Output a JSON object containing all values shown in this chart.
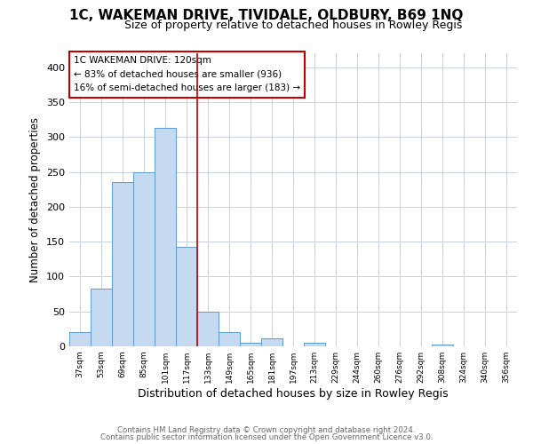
{
  "title": "1C, WAKEMAN DRIVE, TIVIDALE, OLDBURY, B69 1NQ",
  "subtitle": "Size of property relative to detached houses in Rowley Regis",
  "xlabel": "Distribution of detached houses by size in Rowley Regis",
  "ylabel": "Number of detached properties",
  "categories": [
    "37sqm",
    "53sqm",
    "69sqm",
    "85sqm",
    "101sqm",
    "117sqm",
    "133sqm",
    "149sqm",
    "165sqm",
    "181sqm",
    "197sqm",
    "213sqm",
    "229sqm",
    "244sqm",
    "260sqm",
    "276sqm",
    "292sqm",
    "308sqm",
    "324sqm",
    "340sqm",
    "356sqm"
  ],
  "values": [
    20,
    83,
    235,
    250,
    313,
    142,
    50,
    21,
    5,
    11,
    0,
    5,
    0,
    0,
    0,
    0,
    0,
    2,
    0,
    0,
    0
  ],
  "bar_color": "#c5d9f0",
  "bar_edge_color": "#5b9bd5",
  "vline_x": 5.5,
  "vline_color": "#c00000",
  "ylim": [
    0,
    420
  ],
  "yticks": [
    0,
    50,
    100,
    150,
    200,
    250,
    300,
    350,
    400
  ],
  "annotation_title": "1C WAKEMAN DRIVE: 120sqm",
  "annotation_line1": "← 83% of detached houses are smaller (936)",
  "annotation_line2": "16% of semi-detached houses are larger (183) →",
  "annotation_box_color": "#ffffff",
  "annotation_box_edge": "#c00000",
  "footer1": "Contains HM Land Registry data © Crown copyright and database right 2024.",
  "footer2": "Contains public sector information licensed under the Open Government Licence v3.0.",
  "bg_color": "#ffffff",
  "grid_color": "#c8d0dc",
  "title_fontsize": 11,
  "subtitle_fontsize": 9,
  "xlabel_fontsize": 9,
  "ylabel_fontsize": 8.5
}
